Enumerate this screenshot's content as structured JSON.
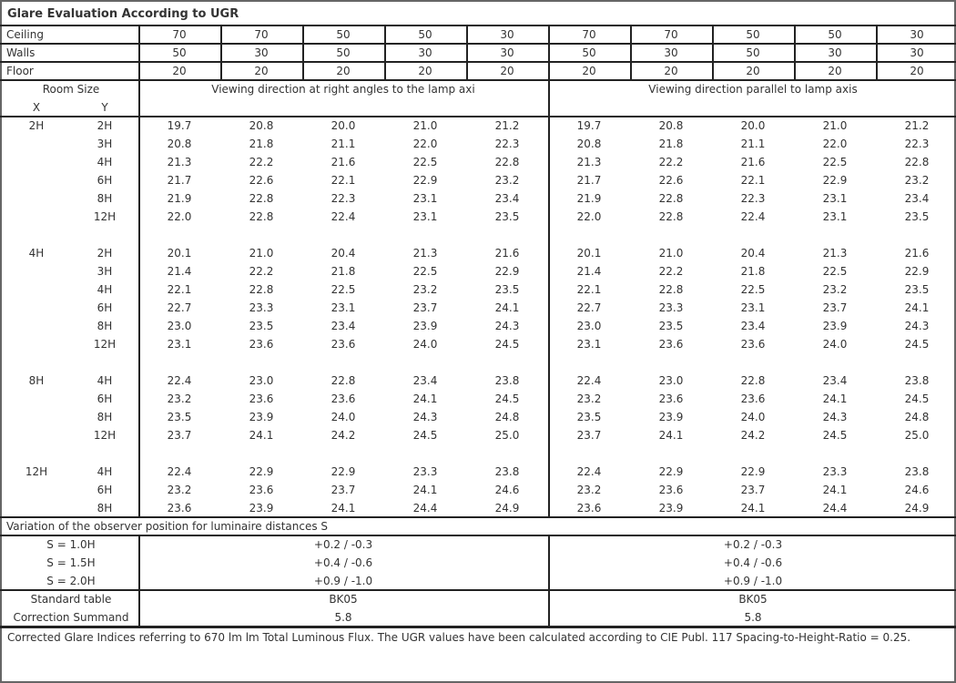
{
  "title": "Glare Evaluation According to UGR",
  "reflectances": {
    "rows": [
      {
        "label": "Ceiling",
        "values": [
          "70",
          "70",
          "50",
          "50",
          "30",
          "70",
          "70",
          "50",
          "50",
          "30"
        ]
      },
      {
        "label": "Walls",
        "values": [
          "50",
          "30",
          "50",
          "30",
          "30",
          "50",
          "30",
          "50",
          "30",
          "30"
        ]
      },
      {
        "label": "Floor",
        "values": [
          "20",
          "20",
          "20",
          "20",
          "20",
          "20",
          "20",
          "20",
          "20",
          "20"
        ]
      }
    ]
  },
  "room_size": {
    "label": "Room Size",
    "x_label": "X",
    "y_label": "Y"
  },
  "directions": {
    "perpendicular": "Viewing direction at right angles to the lamp axi",
    "parallel": "Viewing direction parallel to lamp axis"
  },
  "groups": [
    {
      "x": "2H",
      "rows": [
        {
          "y": "2H",
          "values": [
            "19.7",
            "20.8",
            "20.0",
            "21.0",
            "21.2",
            "19.7",
            "20.8",
            "20.0",
            "21.0",
            "21.2"
          ]
        },
        {
          "y": "3H",
          "values": [
            "20.8",
            "21.8",
            "21.1",
            "22.0",
            "22.3",
            "20.8",
            "21.8",
            "21.1",
            "22.0",
            "22.3"
          ]
        },
        {
          "y": "4H",
          "values": [
            "21.3",
            "22.2",
            "21.6",
            "22.5",
            "22.8",
            "21.3",
            "22.2",
            "21.6",
            "22.5",
            "22.8"
          ]
        },
        {
          "y": "6H",
          "values": [
            "21.7",
            "22.6",
            "22.1",
            "22.9",
            "23.2",
            "21.7",
            "22.6",
            "22.1",
            "22.9",
            "23.2"
          ]
        },
        {
          "y": "8H",
          "values": [
            "21.9",
            "22.8",
            "22.3",
            "23.1",
            "23.4",
            "21.9",
            "22.8",
            "22.3",
            "23.1",
            "23.4"
          ]
        },
        {
          "y": "12H",
          "values": [
            "22.0",
            "22.8",
            "22.4",
            "23.1",
            "23.5",
            "22.0",
            "22.8",
            "22.4",
            "23.1",
            "23.5"
          ]
        }
      ]
    },
    {
      "x": "4H",
      "rows": [
        {
          "y": "2H",
          "values": [
            "20.1",
            "21.0",
            "20.4",
            "21.3",
            "21.6",
            "20.1",
            "21.0",
            "20.4",
            "21.3",
            "21.6"
          ]
        },
        {
          "y": "3H",
          "values": [
            "21.4",
            "22.2",
            "21.8",
            "22.5",
            "22.9",
            "21.4",
            "22.2",
            "21.8",
            "22.5",
            "22.9"
          ]
        },
        {
          "y": "4H",
          "values": [
            "22.1",
            "22.8",
            "22.5",
            "23.2",
            "23.5",
            "22.1",
            "22.8",
            "22.5",
            "23.2",
            "23.5"
          ]
        },
        {
          "y": "6H",
          "values": [
            "22.7",
            "23.3",
            "23.1",
            "23.7",
            "24.1",
            "22.7",
            "23.3",
            "23.1",
            "23.7",
            "24.1"
          ]
        },
        {
          "y": "8H",
          "values": [
            "23.0",
            "23.5",
            "23.4",
            "23.9",
            "24.3",
            "23.0",
            "23.5",
            "23.4",
            "23.9",
            "24.3"
          ]
        },
        {
          "y": "12H",
          "values": [
            "23.1",
            "23.6",
            "23.6",
            "24.0",
            "24.5",
            "23.1",
            "23.6",
            "23.6",
            "24.0",
            "24.5"
          ]
        }
      ]
    },
    {
      "x": "8H",
      "rows": [
        {
          "y": "4H",
          "values": [
            "22.4",
            "23.0",
            "22.8",
            "23.4",
            "23.8",
            "22.4",
            "23.0",
            "22.8",
            "23.4",
            "23.8"
          ]
        },
        {
          "y": "6H",
          "values": [
            "23.2",
            "23.6",
            "23.6",
            "24.1",
            "24.5",
            "23.2",
            "23.6",
            "23.6",
            "24.1",
            "24.5"
          ]
        },
        {
          "y": "8H",
          "values": [
            "23.5",
            "23.9",
            "24.0",
            "24.3",
            "24.8",
            "23.5",
            "23.9",
            "24.0",
            "24.3",
            "24.8"
          ]
        },
        {
          "y": "12H",
          "values": [
            "23.7",
            "24.1",
            "24.2",
            "24.5",
            "25.0",
            "23.7",
            "24.1",
            "24.2",
            "24.5",
            "25.0"
          ]
        }
      ]
    },
    {
      "x": "12H",
      "rows": [
        {
          "y": "4H",
          "values": [
            "22.4",
            "22.9",
            "22.9",
            "23.3",
            "23.8",
            "22.4",
            "22.9",
            "22.9",
            "23.3",
            "23.8"
          ]
        },
        {
          "y": "6H",
          "values": [
            "23.2",
            "23.6",
            "23.7",
            "24.1",
            "24.6",
            "23.2",
            "23.6",
            "23.7",
            "24.1",
            "24.6"
          ]
        },
        {
          "y": "8H",
          "values": [
            "23.6",
            "23.9",
            "24.1",
            "24.4",
            "24.9",
            "23.6",
            "23.9",
            "24.1",
            "24.4",
            "24.9"
          ]
        }
      ]
    }
  ],
  "variation": {
    "title": "Variation of the observer position for luminaire distances S",
    "rows": [
      {
        "label": "S = 1.0H",
        "perpendicular": "+0.2 / -0.3",
        "parallel": "+0.2 / -0.3"
      },
      {
        "label": "S = 1.5H",
        "perpendicular": "+0.4 / -0.6",
        "parallel": "+0.4 / -0.6"
      },
      {
        "label": "S = 2.0H",
        "perpendicular": "+0.9 / -1.0",
        "parallel": "+0.9 / -1.0"
      }
    ]
  },
  "standard": {
    "rows": [
      {
        "label": "Standard table",
        "perpendicular": "BK05",
        "parallel": "BK05"
      },
      {
        "label": "Correction Summand",
        "perpendicular": "5.8",
        "parallel": "5.8"
      }
    ]
  },
  "footnote": "Corrected Glare Indices referring to 670 lm lm Total Luminous Flux. The UGR values have been calculated according to CIE Publ. 117    Spacing-to-Height-Ratio = 0.25."
}
